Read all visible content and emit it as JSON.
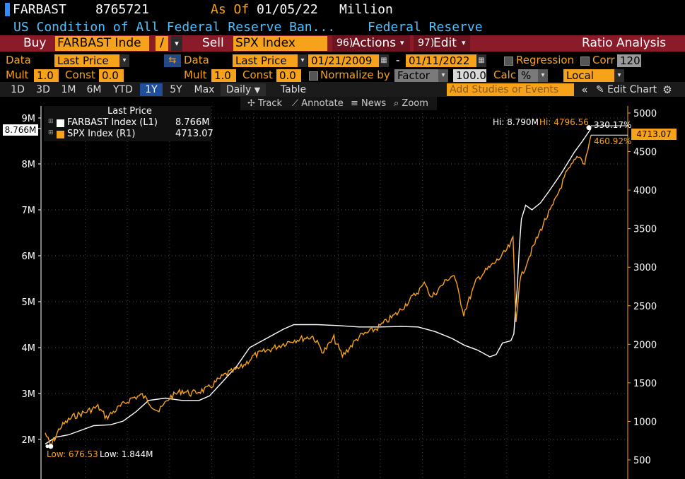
{
  "header": {
    "ticker": "FARBAST",
    "last_value": "8765721",
    "as_of_label": "As Of",
    "as_of_date": "01/05/22",
    "unit": "Million",
    "description": "US Condition of All Federal Reserve Ban...",
    "source": "Federal Reserve"
  },
  "toolbar": {
    "buy_label": "Buy",
    "buy_security": "FARBAST Inde",
    "operator": "/",
    "sell_label": "Sell",
    "sell_security": "SPX Index",
    "actions_num": "96)",
    "actions_label": "Actions",
    "edit_num": "97)",
    "edit_label": "Edit",
    "ratio_label": "Ratio Analysis"
  },
  "data_row": {
    "data_label_1": "Data",
    "data_value_1": "Last Price",
    "data_label_2": "Data",
    "data_value_2": "Last Price",
    "start_date": "01/21/2009",
    "dash": "-",
    "end_date": "01/11/2022",
    "regression_label": "Regression",
    "corr_label": "Corr",
    "corr_value": "120"
  },
  "mult_row": {
    "mult_label_1": "Mult",
    "mult_value_1": "1.0",
    "const_label_1": "Const",
    "const_value_1": "0.0",
    "mult_label_2": "Mult",
    "mult_value_2": "1.0",
    "const_label_2": "Const",
    "const_value_2": "0.0",
    "normalize_label": "Normalize by",
    "normalize_value": "Factor",
    "factor_value": "100.0",
    "calc_label": "Calc",
    "calc_value": "%",
    "local_value": "Local"
  },
  "tabs": {
    "items": [
      "1D",
      "3D",
      "1M",
      "6M",
      "YTD",
      "1Y",
      "5Y",
      "Max"
    ],
    "active": "1Y",
    "frequency": "Daily",
    "table_label": "Table",
    "studies_placeholder": "Add Studies or Events",
    "edit_chart_label": "Edit Chart"
  },
  "chart_tools": {
    "track": "Track",
    "annotate": "Annotate",
    "news": "News",
    "zoom": "Zoom"
  },
  "legend": {
    "title": "Last Price",
    "series": [
      {
        "name": "FARBAST Index  (L1)",
        "value": "8.766M",
        "color": "#ffffff"
      },
      {
        "name": "SPX Index  (R1)",
        "value": "4713.07",
        "color": "#f7a21b"
      }
    ]
  },
  "annotations": {
    "left_tag": "8.766M",
    "right_tag": "4713.07",
    "hi_left": "Hi: 8.790M",
    "hi_right": "Hi: 4796.56",
    "pct_white": "330.17%",
    "pct_orange": "460.92%",
    "low_orange": "Low: 676.53",
    "low_white": "Low: 1.844M"
  },
  "chart_data": {
    "type": "line",
    "x_range": [
      "2009-01-21",
      "2022-01-11"
    ],
    "left_axis": {
      "ticks": [
        "2M",
        "3M",
        "4M",
        "5M",
        "6M",
        "7M",
        "8M",
        "9M"
      ],
      "range": [
        1.7,
        9.2
      ]
    },
    "right_axis": {
      "ticks": [
        "500",
        "1000",
        "1500",
        "2000",
        "2500",
        "3000",
        "3500",
        "4000",
        "4500",
        "5000"
      ],
      "range": [
        450,
        5060
      ]
    },
    "series": [
      {
        "name": "FARBAST Index  (L1)",
        "axis": "left",
        "color": "#ffffff",
        "x": [
          2009.05,
          2009.3,
          2009.6,
          2009.9,
          2010.2,
          2010.6,
          2010.9,
          2011.2,
          2011.5,
          2011.9,
          2012.3,
          2012.7,
          2012.95,
          2013.3,
          2013.6,
          2013.9,
          2014.3,
          2014.7,
          2014.95,
          2015.5,
          2016.0,
          2016.5,
          2017.0,
          2017.5,
          2017.9,
          2018.3,
          2018.7,
          2019.0,
          2019.3,
          2019.6,
          2019.75,
          2019.9,
          2020.1,
          2020.17,
          2020.2,
          2020.25,
          2020.3,
          2020.35,
          2020.45,
          2020.6,
          2020.8,
          2021.0,
          2021.3,
          2021.6,
          2021.8,
          2022.0
        ],
        "values": [
          1.9,
          2.05,
          2.1,
          2.2,
          2.3,
          2.32,
          2.4,
          2.6,
          2.85,
          2.9,
          2.85,
          2.85,
          2.95,
          3.3,
          3.6,
          4.0,
          4.2,
          4.4,
          4.5,
          4.5,
          4.48,
          4.45,
          4.45,
          4.46,
          4.45,
          4.35,
          4.2,
          4.05,
          3.95,
          3.8,
          3.85,
          4.1,
          4.15,
          4.3,
          4.7,
          5.3,
          6.2,
          6.8,
          7.1,
          7.0,
          7.15,
          7.4,
          7.8,
          8.25,
          8.5,
          8.77
        ]
      },
      {
        "name": "SPX Index  (R1)",
        "axis": "right",
        "color": "#f7a21b",
        "x": [
          2009.05,
          2009.18,
          2009.4,
          2009.7,
          2010.0,
          2010.3,
          2010.5,
          2010.8,
          2011.1,
          2011.35,
          2011.6,
          2011.75,
          2012.0,
          2012.3,
          2012.5,
          2012.9,
          2013.3,
          2013.7,
          2014.0,
          2014.5,
          2014.9,
          2015.4,
          2015.65,
          2015.9,
          2016.1,
          2016.5,
          2016.9,
          2017.4,
          2017.9,
          2018.08,
          2018.2,
          2018.6,
          2018.75,
          2018.98,
          2019.3,
          2019.6,
          2019.9,
          2020.1,
          2020.15,
          2020.22,
          2020.3,
          2020.5,
          2020.7,
          2020.9,
          2021.1,
          2021.4,
          2021.7,
          2021.85,
          2022.0
        ],
        "values": [
          850,
          676.53,
          920,
          1060,
          1120,
          1190,
          1050,
          1180,
          1300,
          1340,
          1200,
          1130,
          1310,
          1400,
          1360,
          1420,
          1600,
          1700,
          1850,
          1960,
          2050,
          2100,
          1900,
          2080,
          1850,
          2100,
          2200,
          2400,
          2690,
          2800,
          2600,
          2850,
          2900,
          2400,
          2850,
          3000,
          3150,
          3300,
          3380,
          2300,
          2800,
          3100,
          3350,
          3600,
          3800,
          4200,
          4450,
          4350,
          4713.07
        ]
      }
    ]
  }
}
